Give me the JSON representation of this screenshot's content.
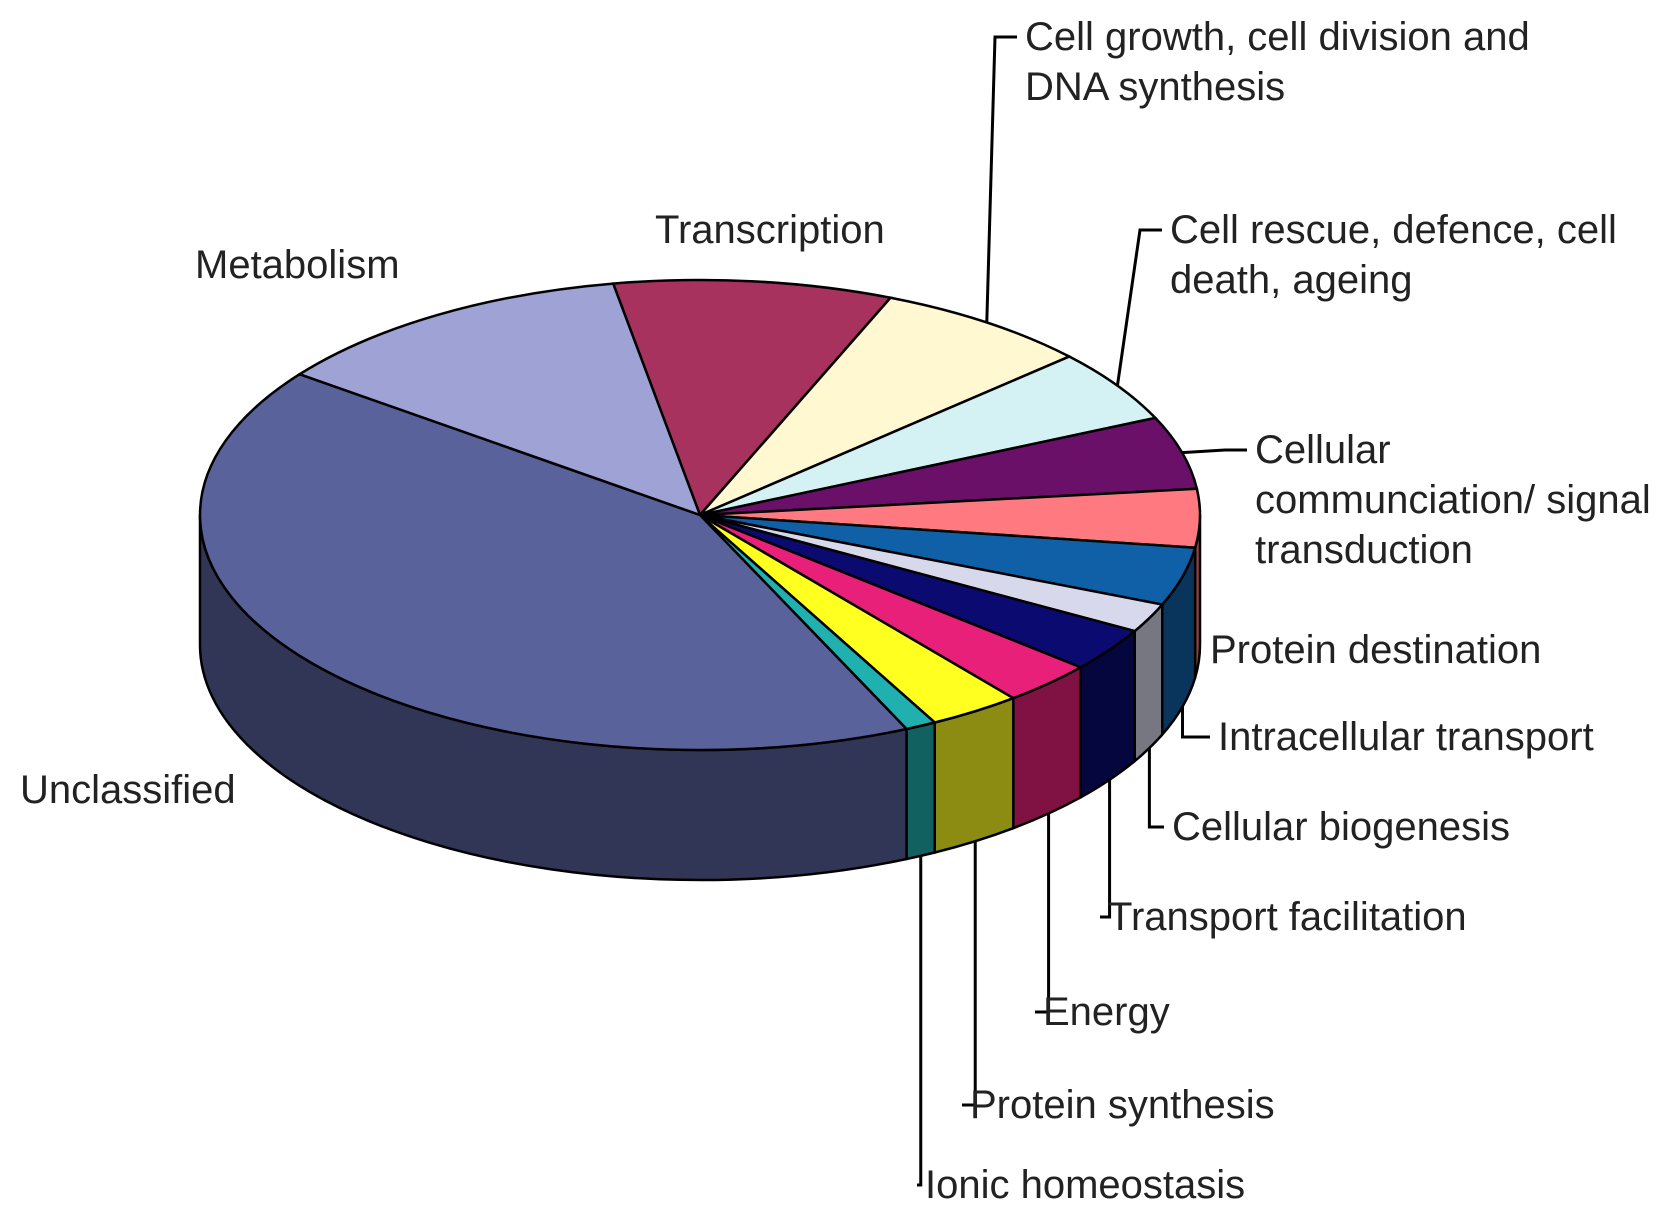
{
  "chart_data": {
    "type": "pie",
    "categories": [
      "Transcription",
      "Cell growth, cell division and DNA synthesis",
      "Cell rescue, defence, cell death, ageing",
      "Cellular communciation/ signal transduction",
      "Protein destination",
      "Intracellular transport",
      "Cellular biogenesis",
      "Transport facilitation",
      "Energy",
      "Protein synthesis",
      "Ionic homeostasis",
      "Unclassified",
      "Metabolism"
    ],
    "values": [
      9,
      7,
      5,
      5,
      4,
      4,
      2,
      3,
      3,
      3,
      1,
      42,
      12
    ],
    "colors": [
      "#a8325e",
      "#fff8d0",
      "#d4f2f4",
      "#6a1068",
      "#ff7a80",
      "#1060a8",
      "#d8d8ec",
      "#0a0a70",
      "#e8207a",
      "#ffff20",
      "#20b0b0",
      "#5a629c",
      "#9ea2d4"
    ]
  }
}
